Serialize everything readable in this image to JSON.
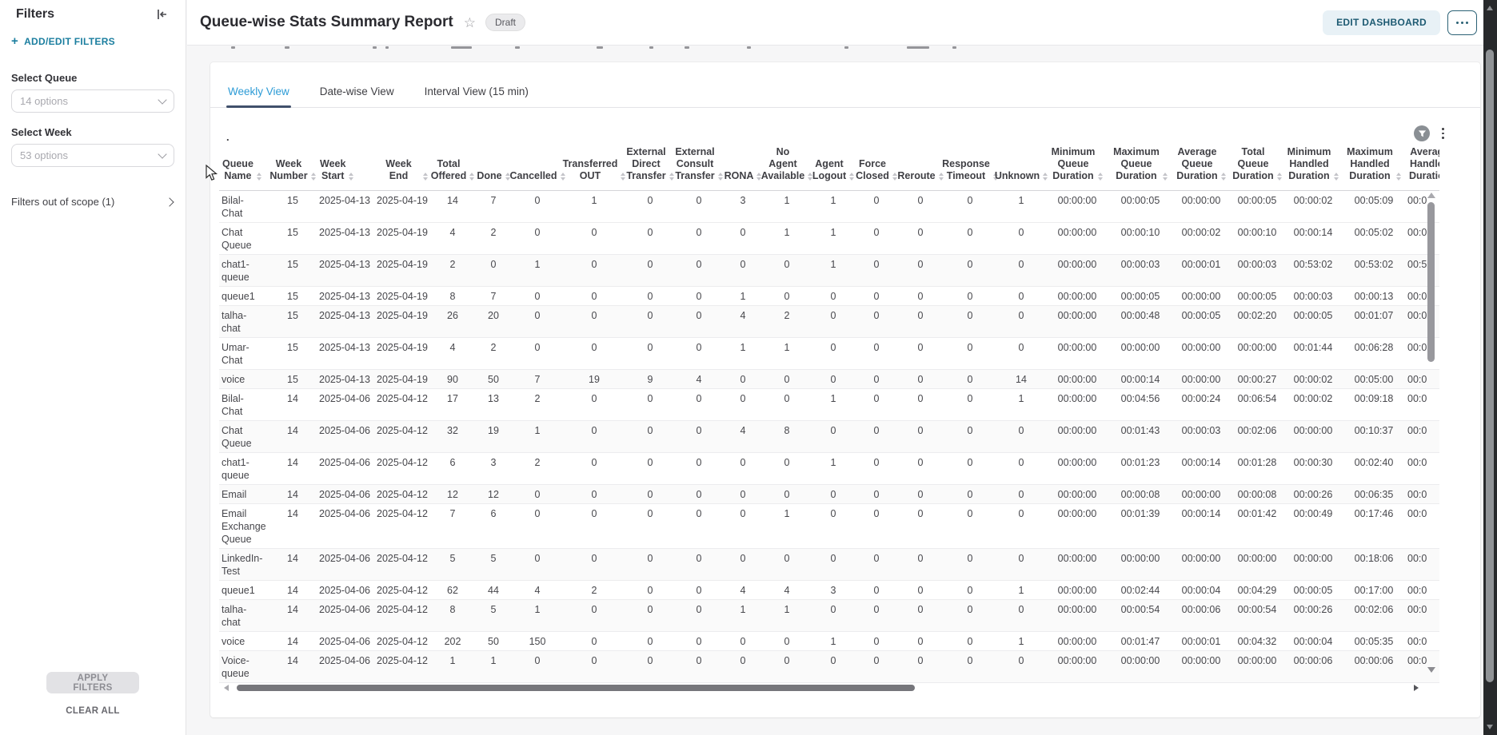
{
  "sidebar": {
    "title": "Filters",
    "add_filters_label": "ADD/EDIT FILTERS",
    "fields": [
      {
        "label": "Select Queue",
        "placeholder": "14 options"
      },
      {
        "label": "Select Week",
        "placeholder": "53 options"
      }
    ],
    "out_of_scope_label": "Filters out of scope (1)",
    "apply_label": "APPLY FILTERS",
    "clear_label": "CLEAR ALL"
  },
  "header": {
    "title": "Queue-wise Stats Summary Report",
    "status_badge": "Draft",
    "edit_button": "EDIT DASHBOARD"
  },
  "tabs": [
    {
      "label": "Weekly View",
      "active": true
    },
    {
      "label": "Date-wise View",
      "active": false
    },
    {
      "label": "Interval View (15 min)",
      "active": false
    }
  ],
  "widget": {
    "title": ".",
    "table": {
      "columns": [
        {
          "label": "Queue\nName"
        },
        {
          "label": "Week\nNumber"
        },
        {
          "label": "Week\nStart"
        },
        {
          "label": "Week End"
        },
        {
          "label": "Total\nOffered"
        },
        {
          "label": "Done"
        },
        {
          "label": "Cancelled"
        },
        {
          "label": "Transferred\nOUT"
        },
        {
          "label": "External\nDirect\nTransfer"
        },
        {
          "label": "External\nConsult\nTransfer"
        },
        {
          "label": "RONA"
        },
        {
          "label": "No Agent\nAvailable"
        },
        {
          "label": "Agent\nLogout"
        },
        {
          "label": "Force\nClosed"
        },
        {
          "label": "Reroute"
        },
        {
          "label": "Response\nTimeout"
        },
        {
          "label": "Unknown"
        },
        {
          "label": "Minimum\nQueue\nDuration"
        },
        {
          "label": "Maximum\nQueue\nDuration"
        },
        {
          "label": "Average\nQueue\nDuration"
        },
        {
          "label": "Total\nQueue\nDuration"
        },
        {
          "label": "Minimum\nHandled\nDuration"
        },
        {
          "label": "Maximum\nHandled\nDuration"
        },
        {
          "label": "Average\nHandled\nDuration"
        }
      ],
      "rows": [
        [
          "Bilal-\nChat",
          "15",
          "2025-04-13",
          "2025-04-19",
          "14",
          "7",
          "0",
          "1",
          "0",
          "0",
          "3",
          "1",
          "1",
          "0",
          "0",
          "0",
          "1",
          "00:00:00",
          "00:00:05",
          "00:00:00",
          "00:00:05",
          "00:00:02",
          "00:05:09",
          "00:0"
        ],
        [
          "Chat\nQueue",
          "15",
          "2025-04-13",
          "2025-04-19",
          "4",
          "2",
          "0",
          "0",
          "0",
          "0",
          "0",
          "1",
          "1",
          "0",
          "0",
          "0",
          "0",
          "00:00:00",
          "00:00:10",
          "00:00:02",
          "00:00:10",
          "00:00:14",
          "00:05:02",
          "00:0"
        ],
        [
          "chat1-\nqueue",
          "15",
          "2025-04-13",
          "2025-04-19",
          "2",
          "0",
          "1",
          "0",
          "0",
          "0",
          "0",
          "0",
          "1",
          "0",
          "0",
          "0",
          "0",
          "00:00:00",
          "00:00:03",
          "00:00:01",
          "00:00:03",
          "00:53:02",
          "00:53:02",
          "00:5"
        ],
        [
          "queue1",
          "15",
          "2025-04-13",
          "2025-04-19",
          "8",
          "7",
          "0",
          "0",
          "0",
          "0",
          "1",
          "0",
          "0",
          "0",
          "0",
          "0",
          "0",
          "00:00:00",
          "00:00:05",
          "00:00:00",
          "00:00:05",
          "00:00:03",
          "00:00:13",
          "00:0"
        ],
        [
          "talha-\nchat",
          "15",
          "2025-04-13",
          "2025-04-19",
          "26",
          "20",
          "0",
          "0",
          "0",
          "0",
          "4",
          "2",
          "0",
          "0",
          "0",
          "0",
          "0",
          "00:00:00",
          "00:00:48",
          "00:00:05",
          "00:02:20",
          "00:00:05",
          "00:01:07",
          "00:0"
        ],
        [
          "Umar-\nChat",
          "15",
          "2025-04-13",
          "2025-04-19",
          "4",
          "2",
          "0",
          "0",
          "0",
          "0",
          "1",
          "1",
          "0",
          "0",
          "0",
          "0",
          "0",
          "00:00:00",
          "00:00:00",
          "00:00:00",
          "00:00:00",
          "00:01:44",
          "00:06:28",
          "00:0"
        ],
        [
          "voice",
          "15",
          "2025-04-13",
          "2025-04-19",
          "90",
          "50",
          "7",
          "19",
          "9",
          "4",
          "0",
          "0",
          "0",
          "0",
          "0",
          "0",
          "14",
          "00:00:00",
          "00:00:14",
          "00:00:00",
          "00:00:27",
          "00:00:02",
          "00:05:00",
          "00:0"
        ],
        [
          "Bilal-\nChat",
          "14",
          "2025-04-06",
          "2025-04-12",
          "17",
          "13",
          "2",
          "0",
          "0",
          "0",
          "0",
          "0",
          "1",
          "0",
          "0",
          "0",
          "1",
          "00:00:00",
          "00:04:56",
          "00:00:24",
          "00:06:54",
          "00:00:02",
          "00:09:18",
          "00:0"
        ],
        [
          "Chat\nQueue",
          "14",
          "2025-04-06",
          "2025-04-12",
          "32",
          "19",
          "1",
          "0",
          "0",
          "0",
          "4",
          "8",
          "0",
          "0",
          "0",
          "0",
          "0",
          "00:00:00",
          "00:01:43",
          "00:00:03",
          "00:02:06",
          "00:00:00",
          "00:10:37",
          "00:0"
        ],
        [
          "chat1-\nqueue",
          "14",
          "2025-04-06",
          "2025-04-12",
          "6",
          "3",
          "2",
          "0",
          "0",
          "0",
          "0",
          "0",
          "1",
          "0",
          "0",
          "0",
          "0",
          "00:00:00",
          "00:01:23",
          "00:00:14",
          "00:01:28",
          "00:00:30",
          "00:02:40",
          "00:0"
        ],
        [
          "Email",
          "14",
          "2025-04-06",
          "2025-04-12",
          "12",
          "12",
          "0",
          "0",
          "0",
          "0",
          "0",
          "0",
          "0",
          "0",
          "0",
          "0",
          "0",
          "00:00:00",
          "00:00:08",
          "00:00:00",
          "00:00:08",
          "00:00:26",
          "00:06:35",
          "00:0"
        ],
        [
          "Email\nExchange\nQueue",
          "14",
          "2025-04-06",
          "2025-04-12",
          "7",
          "6",
          "0",
          "0",
          "0",
          "0",
          "0",
          "1",
          "0",
          "0",
          "0",
          "0",
          "0",
          "00:00:00",
          "00:01:39",
          "00:00:14",
          "00:01:42",
          "00:00:49",
          "00:17:46",
          "00:0"
        ],
        [
          "LinkedIn-\nTest",
          "14",
          "2025-04-06",
          "2025-04-12",
          "5",
          "5",
          "0",
          "0",
          "0",
          "0",
          "0",
          "0",
          "0",
          "0",
          "0",
          "0",
          "0",
          "00:00:00",
          "00:00:00",
          "00:00:00",
          "00:00:00",
          "00:00:00",
          "00:18:06",
          "00:0"
        ],
        [
          "queue1",
          "14",
          "2025-04-06",
          "2025-04-12",
          "62",
          "44",
          "4",
          "2",
          "0",
          "0",
          "4",
          "4",
          "3",
          "0",
          "0",
          "0",
          "1",
          "00:00:00",
          "00:02:44",
          "00:00:04",
          "00:04:29",
          "00:00:05",
          "00:17:00",
          "00:0"
        ],
        [
          "talha-\nchat",
          "14",
          "2025-04-06",
          "2025-04-12",
          "8",
          "5",
          "1",
          "0",
          "0",
          "0",
          "1",
          "1",
          "0",
          "0",
          "0",
          "0",
          "0",
          "00:00:00",
          "00:00:54",
          "00:00:06",
          "00:00:54",
          "00:00:26",
          "00:02:06",
          "00:0"
        ],
        [
          "voice",
          "14",
          "2025-04-06",
          "2025-04-12",
          "202",
          "50",
          "150",
          "0",
          "0",
          "0",
          "0",
          "0",
          "1",
          "0",
          "0",
          "0",
          "1",
          "00:00:00",
          "00:01:47",
          "00:00:01",
          "00:04:32",
          "00:00:04",
          "00:05:35",
          "00:0"
        ],
        [
          "Voice-\nqueue",
          "14",
          "2025-04-06",
          "2025-04-12",
          "1",
          "1",
          "0",
          "0",
          "0",
          "0",
          "0",
          "0",
          "0",
          "0",
          "0",
          "0",
          "0",
          "00:00:00",
          "00:00:00",
          "00:00:00",
          "00:00:00",
          "00:00:06",
          "00:00:06",
          "00:0"
        ]
      ]
    }
  },
  "colors": {
    "accent_blue": "#2c9bd6",
    "tab_underline": "#40506b",
    "link_teal": "#1b7e9f",
    "edit_button_bg": "#e8f1f6",
    "edit_button_text": "#1d5a72"
  }
}
